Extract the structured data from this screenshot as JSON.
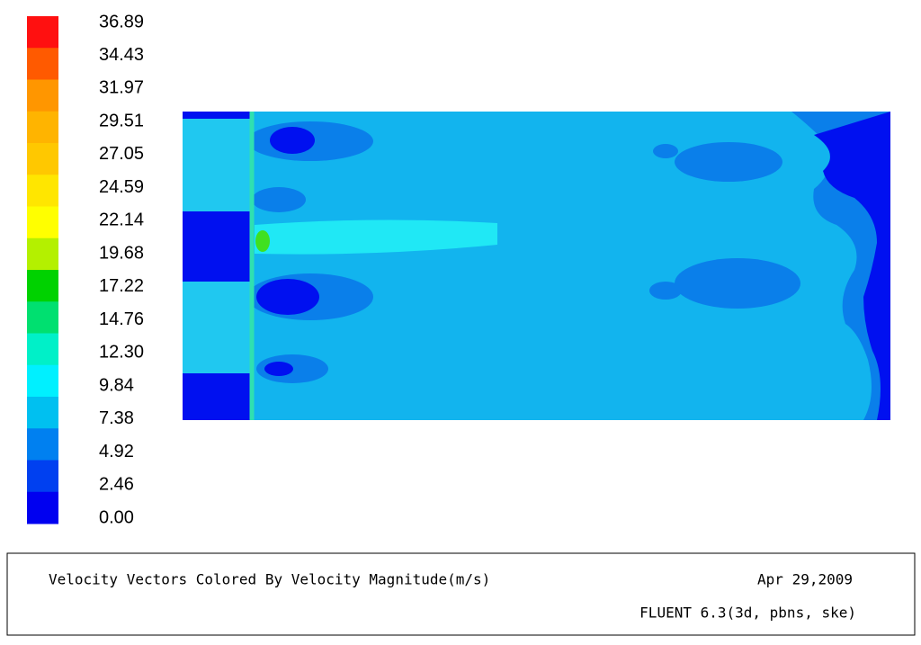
{
  "colorbar": {
    "labels": [
      "36.89",
      "34.43",
      "31.97",
      "29.51",
      "27.05",
      "24.59",
      "22.14",
      "19.68",
      "17.22",
      "14.76",
      "12.30",
      "9.84",
      "7.38",
      "4.92",
      "2.46",
      "0.00"
    ],
    "colors": [
      "#ff1010",
      "#ff5a00",
      "#ff9600",
      "#ffb400",
      "#ffc800",
      "#ffe600",
      "#ffff00",
      "#b4f000",
      "#00d200",
      "#00e070",
      "#00f0c8",
      "#00f0ff",
      "#00c0f0",
      "#0080f0",
      "#0040f0",
      "#0000f0"
    ]
  },
  "footer": {
    "title": "Velocity Vectors Colored By Velocity Magnitude(m/s)",
    "date": "Apr 29,2009",
    "version": "FLUENT 6.3(3d,  pbns,  ske)"
  }
}
